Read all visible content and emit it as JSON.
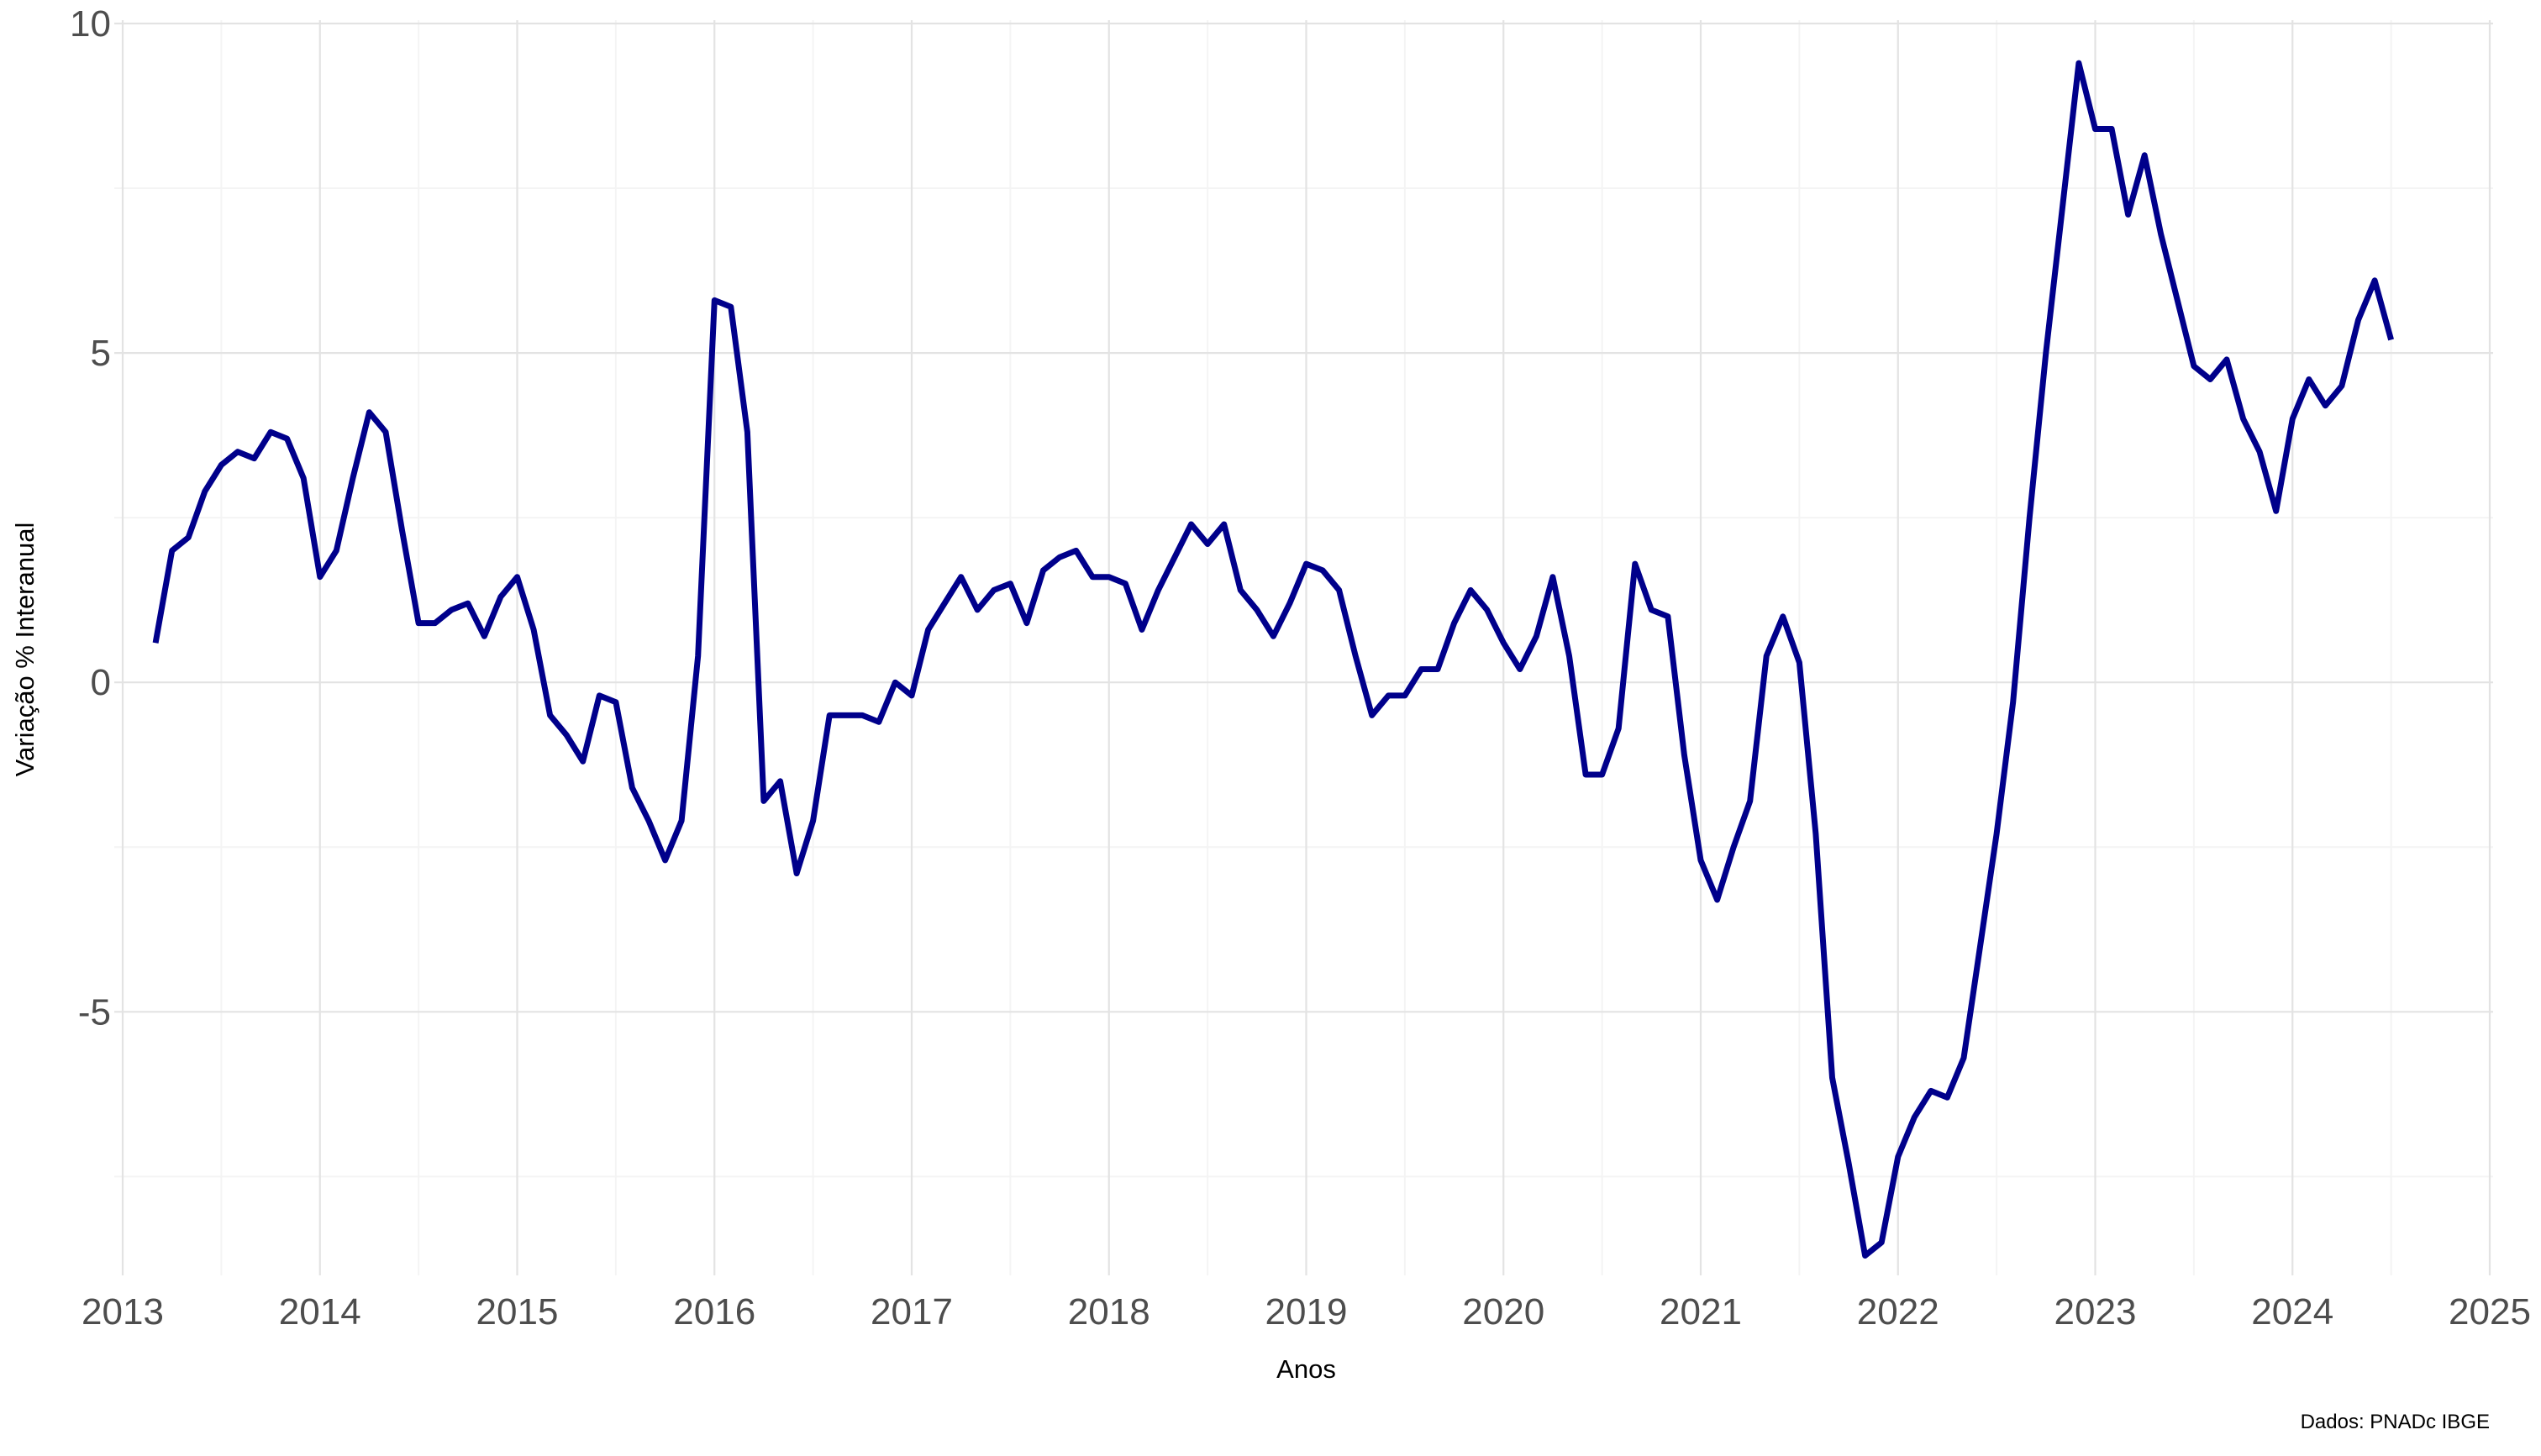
{
  "chart_data": {
    "type": "line",
    "title": "",
    "xlabel": "Anos",
    "ylabel": "Variação % Interanual",
    "caption": "Dados: PNADc IBGE",
    "xlim": [
      "2013-01-01",
      "2025-01-01"
    ],
    "ylim": [
      -9.0,
      10.0
    ],
    "x_ticks": [
      "2013",
      "2014",
      "2015",
      "2016",
      "2017",
      "2018",
      "2019",
      "2020",
      "2021",
      "2022",
      "2023",
      "2024",
      "2025"
    ],
    "y_ticks": [
      {
        "value": 10,
        "label": "10"
      },
      {
        "value": 5,
        "label": "5"
      },
      {
        "value": 0,
        "label": "0"
      },
      {
        "value": -5,
        "label": "-5"
      }
    ],
    "grid": true,
    "legend": "none",
    "colors": {
      "line": "#00008B",
      "grid_major": "#e3e3e3",
      "grid_minor": "#f4f4f4"
    },
    "series": [
      {
        "x": [
          "2013-03",
          "2013-04",
          "2013-05",
          "2013-06",
          "2013-07",
          "2013-08",
          "2013-09",
          "2013-10",
          "2013-11",
          "2013-12",
          "2014-01",
          "2014-02",
          "2014-03",
          "2014-04",
          "2014-05",
          "2014-06",
          "2014-07",
          "2014-08",
          "2014-09",
          "2014-10",
          "2014-11",
          "2014-12",
          "2015-01",
          "2015-02",
          "2015-03",
          "2015-04",
          "2015-05",
          "2015-06",
          "2015-07",
          "2015-08",
          "2015-09",
          "2015-10",
          "2015-11",
          "2015-12",
          "2016-01",
          "2016-02",
          "2016-03",
          "2016-04",
          "2016-05",
          "2016-06",
          "2016-07",
          "2016-08",
          "2016-09",
          "2016-10",
          "2016-11",
          "2016-12",
          "2017-01",
          "2017-02",
          "2017-03",
          "2017-04",
          "2017-05",
          "2017-06",
          "2017-07",
          "2017-08",
          "2017-09",
          "2017-10",
          "2017-11",
          "2017-12",
          "2018-01",
          "2018-02",
          "2018-03",
          "2018-04",
          "2018-05",
          "2018-06",
          "2018-07",
          "2018-08",
          "2018-09",
          "2018-10",
          "2018-11",
          "2018-12",
          "2019-01",
          "2019-02",
          "2019-03",
          "2019-04",
          "2019-05",
          "2019-06",
          "2019-07",
          "2019-08",
          "2019-09",
          "2019-10",
          "2019-11",
          "2019-12",
          "2020-01",
          "2020-02",
          "2020-03",
          "2020-04",
          "2020-05",
          "2020-06",
          "2020-07",
          "2020-08",
          "2020-09",
          "2020-10",
          "2020-11",
          "2020-12",
          "2021-01",
          "2021-02",
          "2021-03",
          "2021-04",
          "2021-05",
          "2021-06",
          "2021-07",
          "2021-08",
          "2021-09",
          "2021-10",
          "2021-11",
          "2021-12",
          "2022-01",
          "2022-02",
          "2022-03",
          "2022-04",
          "2022-05",
          "2022-06",
          "2022-07",
          "2022-08",
          "2022-09",
          "2022-10",
          "2022-11",
          "2022-12",
          "2023-01",
          "2023-02",
          "2023-03",
          "2023-04",
          "2023-05",
          "2023-06",
          "2023-07",
          "2023-08",
          "2023-09",
          "2023-10",
          "2023-11",
          "2023-12",
          "2024-01",
          "2024-02",
          "2024-03",
          "2024-04",
          "2024-05",
          "2024-06",
          "2024-07"
        ],
        "values": [
          0.6,
          2.0,
          2.2,
          2.9,
          3.3,
          3.5,
          3.4,
          3.8,
          3.7,
          3.1,
          1.6,
          2.0,
          3.1,
          4.1,
          3.8,
          2.3,
          0.9,
          0.9,
          1.1,
          1.2,
          0.7,
          1.3,
          1.6,
          0.8,
          -0.5,
          -0.8,
          -1.2,
          -0.2,
          -0.3,
          -1.6,
          -2.1,
          -2.7,
          -2.1,
          0.4,
          5.8,
          5.7,
          3.8,
          -1.8,
          -1.5,
          -2.9,
          -2.1,
          -0.5,
          -0.5,
          -0.5,
          -0.6,
          0.0,
          -0.2,
          0.8,
          1.2,
          1.6,
          1.1,
          1.4,
          1.5,
          0.9,
          1.7,
          1.9,
          2.0,
          1.6,
          1.6,
          1.5,
          0.8,
          1.4,
          1.9,
          2.4,
          2.1,
          2.4,
          1.4,
          1.1,
          0.7,
          1.2,
          1.8,
          1.7,
          1.4,
          0.4,
          -0.5,
          -0.2,
          -0.2,
          0.2,
          0.2,
          0.9,
          1.4,
          1.1,
          0.6,
          0.2,
          0.7,
          1.6,
          0.4,
          -1.4,
          -1.4,
          -0.7,
          1.8,
          1.1,
          1.0,
          -1.1,
          -2.7,
          -3.3,
          -2.5,
          -1.8,
          0.4,
          1.0,
          0.3,
          -2.3,
          -6.0,
          -7.3,
          -8.7,
          -8.5,
          -7.2,
          -6.6,
          -6.2,
          -6.3,
          -5.7,
          -4.0,
          -2.3,
          -0.3,
          2.5,
          5.0,
          7.2,
          9.4,
          8.4,
          8.4,
          7.1,
          8.0,
          6.8,
          5.8,
          4.8,
          4.6,
          4.9,
          4.0,
          3.5,
          2.6,
          4.0,
          4.6,
          4.2,
          4.5,
          5.5,
          6.1,
          5.2
        ]
      }
    ]
  }
}
